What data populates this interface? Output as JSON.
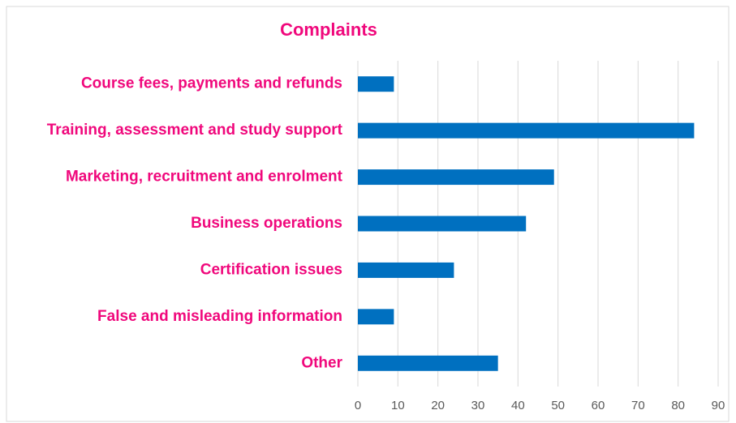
{
  "chart_data": {
    "type": "barh",
    "title": "Complaints",
    "categories": [
      "Course fees, payments and refunds",
      "Training, assessment and study support",
      "Marketing, recruitment and enrolment",
      "Business operations",
      "Certification issues",
      "False and misleading information",
      "Other"
    ],
    "values": [
      9,
      84,
      49,
      42,
      24,
      9,
      35
    ],
    "color": "#0070c0",
    "xlim": [
      0,
      90
    ],
    "xticks": [
      0,
      10,
      20,
      30,
      40,
      50,
      60,
      70,
      80,
      90
    ],
    "grid": true
  }
}
